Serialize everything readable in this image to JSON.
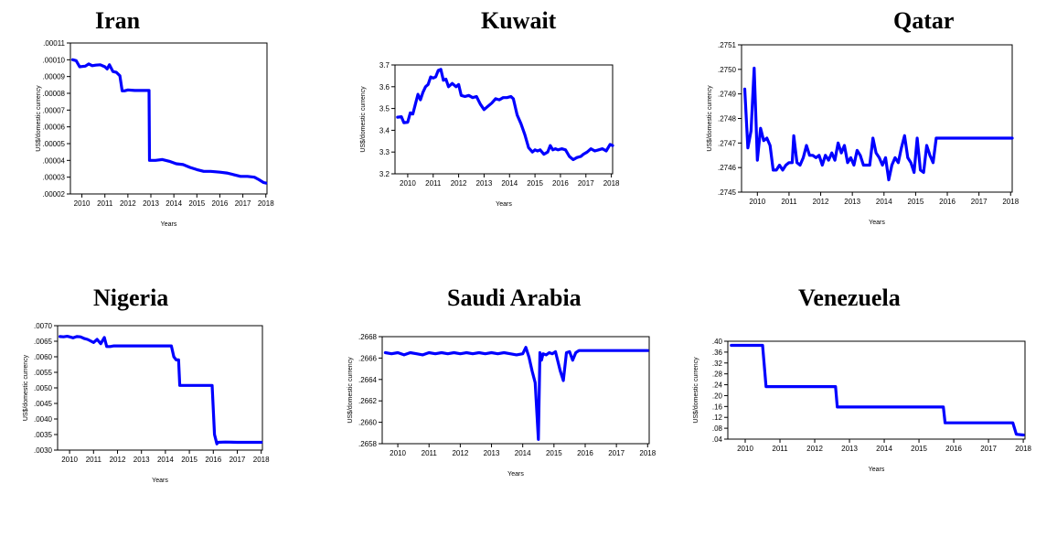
{
  "chart_data": [
    {
      "type": "line",
      "title": "Iran",
      "xlabel": "Years",
      "ylabel": "US$/domestic currency",
      "ylim": [
        2e-05,
        0.00011
      ],
      "xlim": [
        2009.5,
        2018.05
      ],
      "x_ticks": [
        2010,
        2011,
        2012,
        2013,
        2014,
        2015,
        2016,
        2017,
        2018
      ],
      "y_ticks": [
        ".00002",
        ".00003",
        ".00004",
        ".00005",
        ".00006",
        ".00007",
        ".00008",
        ".00009",
        ".00010",
        ".00011"
      ],
      "y_tick_values": [
        2e-05,
        3e-05,
        4e-05,
        5e-05,
        6e-05,
        7e-05,
        8e-05,
        9e-05,
        0.0001,
        0.00011
      ],
      "color": "#0000ff",
      "series": [
        {
          "x": [
            2009.6,
            2009.75,
            2009.9,
            2010.0,
            2010.15,
            2010.3,
            2010.45,
            2010.6,
            2010.8,
            2011.0,
            2011.1,
            2011.2,
            2011.35,
            2011.5,
            2011.65,
            2011.75,
            2011.85,
            2012.0,
            2012.3,
            2012.6,
            2012.92,
            2012.94,
            2013.2,
            2013.5,
            2013.8,
            2014.1,
            2014.4,
            2014.7,
            2015.0,
            2015.3,
            2015.6,
            2016.0,
            2016.3,
            2016.6,
            2016.9,
            2017.2,
            2017.5,
            2017.7,
            2017.9,
            2018.0
          ],
          "values": [
            0.0001,
            9.95e-05,
            9.58e-05,
            9.6e-05,
            9.62e-05,
            9.75e-05,
            9.65e-05,
            9.68e-05,
            9.7e-05,
            9.58e-05,
            9.45e-05,
            9.7e-05,
            9.3e-05,
            9.25e-05,
            9.05e-05,
            8.15e-05,
            8.15e-05,
            8.2e-05,
            8.17e-05,
            8.17e-05,
            8.17e-05,
            4e-05,
            4e-05,
            4.05e-05,
            3.95e-05,
            3.8e-05,
            3.75e-05,
            3.58e-05,
            3.45e-05,
            3.35e-05,
            3.35e-05,
            3.3e-05,
            3.25e-05,
            3.15e-05,
            3.05e-05,
            3.05e-05,
            3e-05,
            2.85e-05,
            2.68e-05,
            2.65e-05
          ]
        }
      ]
    },
    {
      "type": "line",
      "title": "Kuwait",
      "xlabel": "Years",
      "ylabel": "US$/domestic currency",
      "ylim": [
        3.2,
        3.7
      ],
      "xlim": [
        2009.5,
        2018.05
      ],
      "x_ticks": [
        2010,
        2011,
        2012,
        2013,
        2014,
        2015,
        2016,
        2017,
        2018
      ],
      "y_ticks": [
        "3.2",
        "3.3",
        "3.4",
        "3.5",
        "3.6",
        "3.7"
      ],
      "y_tick_values": [
        3.2,
        3.3,
        3.4,
        3.5,
        3.6,
        3.7
      ],
      "color": "#0000ff",
      "series": [
        {
          "x": [
            2009.6,
            2009.75,
            2009.85,
            2010.0,
            2010.1,
            2010.2,
            2010.3,
            2010.4,
            2010.5,
            2010.6,
            2010.7,
            2010.8,
            2010.9,
            2011.0,
            2011.1,
            2011.2,
            2011.3,
            2011.4,
            2011.5,
            2011.6,
            2011.75,
            2011.9,
            2012.0,
            2012.1,
            2012.25,
            2012.4,
            2012.55,
            2012.7,
            2012.85,
            2013.0,
            2013.15,
            2013.3,
            2013.45,
            2013.6,
            2013.75,
            2013.9,
            2014.05,
            2014.15,
            2014.3,
            2014.45,
            2014.6,
            2014.75,
            2014.9,
            2015.0,
            2015.1,
            2015.2,
            2015.35,
            2015.5,
            2015.6,
            2015.7,
            2015.8,
            2015.9,
            2016.05,
            2016.2,
            2016.35,
            2016.5,
            2016.65,
            2016.8,
            2016.9,
            2017.05,
            2017.2,
            2017.35,
            2017.5,
            2017.65,
            2017.8,
            2017.95,
            2018.05
          ],
          "values": [
            3.46,
            3.462,
            3.435,
            3.437,
            3.48,
            3.475,
            3.52,
            3.565,
            3.54,
            3.575,
            3.6,
            3.61,
            3.645,
            3.64,
            3.645,
            3.675,
            3.68,
            3.63,
            3.635,
            3.6,
            3.615,
            3.6,
            3.61,
            3.56,
            3.555,
            3.56,
            3.55,
            3.555,
            3.52,
            3.495,
            3.51,
            3.525,
            3.545,
            3.54,
            3.55,
            3.55,
            3.555,
            3.545,
            3.47,
            3.43,
            3.38,
            3.32,
            3.3,
            3.31,
            3.305,
            3.31,
            3.29,
            3.3,
            3.33,
            3.31,
            3.315,
            3.31,
            3.315,
            3.31,
            3.28,
            3.265,
            3.275,
            3.28,
            3.29,
            3.3,
            3.315,
            3.305,
            3.31,
            3.315,
            3.305,
            3.335,
            3.33
          ]
        }
      ]
    },
    {
      "type": "line",
      "title": "Qatar",
      "xlabel": "Years",
      "ylabel": "US$/domestic currency",
      "ylim": [
        0.2745,
        0.2751
      ],
      "xlim": [
        2009.5,
        2018.05
      ],
      "x_ticks": [
        2010,
        2011,
        2012,
        2013,
        2014,
        2015,
        2016,
        2017,
        2018
      ],
      "y_ticks": [
        ".2745",
        ".2746",
        ".2747",
        ".2748",
        ".2749",
        ".2750",
        ".2751"
      ],
      "y_tick_values": [
        0.2745,
        0.2746,
        0.2747,
        0.2748,
        0.2749,
        0.275,
        0.2751
      ],
      "color": "#0000ff",
      "series": [
        {
          "x": [
            2009.6,
            2009.7,
            2009.8,
            2009.9,
            2010.0,
            2010.1,
            2010.2,
            2010.3,
            2010.4,
            2010.5,
            2010.6,
            2010.7,
            2010.8,
            2010.9,
            2011.0,
            2011.1,
            2011.15,
            2011.25,
            2011.35,
            2011.45,
            2011.55,
            2011.65,
            2011.75,
            2011.85,
            2011.95,
            2012.05,
            2012.15,
            2012.25,
            2012.35,
            2012.45,
            2012.55,
            2012.65,
            2012.75,
            2012.85,
            2012.95,
            2013.05,
            2013.15,
            2013.25,
            2013.35,
            2013.45,
            2013.55,
            2013.65,
            2013.75,
            2013.85,
            2013.95,
            2014.05,
            2014.15,
            2014.25,
            2014.35,
            2014.45,
            2014.55,
            2014.65,
            2014.75,
            2014.85,
            2014.95,
            2015.05,
            2015.15,
            2015.25,
            2015.35,
            2015.45,
            2015.55,
            2015.65,
            2015.75,
            2015.85,
            2016.0,
            2016.5,
            2017.0,
            2017.5,
            2018.05
          ],
          "values": [
            0.27492,
            0.27468,
            0.27475,
            0.275005,
            0.27463,
            0.27476,
            0.27471,
            0.27472,
            0.27469,
            0.27459,
            0.27459,
            0.27461,
            0.27459,
            0.27461,
            0.27462,
            0.27462,
            0.27473,
            0.27462,
            0.27461,
            0.27464,
            0.27469,
            0.27465,
            0.27465,
            0.27464,
            0.27465,
            0.27461,
            0.27465,
            0.27463,
            0.27466,
            0.27463,
            0.2747,
            0.27466,
            0.27469,
            0.27462,
            0.27464,
            0.27461,
            0.27467,
            0.27465,
            0.27461,
            0.27461,
            0.27461,
            0.27472,
            0.27466,
            0.27464,
            0.27461,
            0.27464,
            0.27455,
            0.27461,
            0.27464,
            0.27462,
            0.27468,
            0.27473,
            0.27464,
            0.27462,
            0.27458,
            0.27472,
            0.27459,
            0.27458,
            0.27469,
            0.27465,
            0.27462,
            0.27472,
            0.27472,
            0.27472,
            0.27472,
            0.27472,
            0.27472,
            0.27472,
            0.27472
          ]
        }
      ]
    },
    {
      "type": "line",
      "title": "Nigeria",
      "xlabel": "Years",
      "ylabel": "US$/domestic currency",
      "ylim": [
        0.003,
        0.007
      ],
      "xlim": [
        2009.5,
        2018.05
      ],
      "x_ticks": [
        2010,
        2011,
        2012,
        2013,
        2014,
        2015,
        2016,
        2017,
        2018
      ],
      "y_ticks": [
        ".0030",
        ".0035",
        ".0040",
        ".0045",
        ".0050",
        ".0055",
        ".0060",
        ".0065",
        ".0070"
      ],
      "y_tick_values": [
        0.003,
        0.0035,
        0.004,
        0.0045,
        0.005,
        0.0055,
        0.006,
        0.0065,
        0.007
      ],
      "color": "#0000ff",
      "series": [
        {
          "x": [
            2009.6,
            2009.75,
            2009.9,
            2010.0,
            2010.15,
            2010.3,
            2010.45,
            2010.6,
            2010.75,
            2010.9,
            2011.0,
            2011.15,
            2011.3,
            2011.45,
            2011.55,
            2011.7,
            2011.85,
            2012.0,
            2012.5,
            2013.0,
            2013.5,
            2014.0,
            2014.25,
            2014.35,
            2014.45,
            2014.55,
            2014.6,
            2014.65,
            2015.0,
            2015.5,
            2015.95,
            2016.05,
            2016.15,
            2016.2,
            2016.5,
            2017.0,
            2017.5,
            2018.0
          ],
          "values": [
            0.00665,
            0.00664,
            0.00666,
            0.00664,
            0.00661,
            0.00665,
            0.00664,
            0.00659,
            0.00656,
            0.0065,
            0.00646,
            0.00656,
            0.00642,
            0.00662,
            0.00633,
            0.00633,
            0.00635,
            0.00635,
            0.00635,
            0.00635,
            0.00635,
            0.00635,
            0.00635,
            0.006,
            0.0059,
            0.0059,
            0.00508,
            0.00508,
            0.00508,
            0.00508,
            0.00508,
            0.0035,
            0.0032,
            0.00325,
            0.00326,
            0.00325,
            0.00325,
            0.00325
          ]
        }
      ]
    },
    {
      "type": "line",
      "title": "Saudi Arabia",
      "xlabel": "Years",
      "ylabel": "US$/domestic currency",
      "ylim": [
        0.2658,
        0.2668
      ],
      "xlim": [
        2009.5,
        2018.05
      ],
      "x_ticks": [
        2010,
        2011,
        2012,
        2013,
        2014,
        2015,
        2016,
        2017,
        2018
      ],
      "y_ticks": [
        ".2658",
        ".2660",
        ".2662",
        ".2664",
        ".2666",
        ".2668"
      ],
      "y_tick_values": [
        0.2658,
        0.266,
        0.2662,
        0.2664,
        0.2666,
        0.2668
      ],
      "color": "#0000ff",
      "series": [
        {
          "x": [
            2009.6,
            2009.8,
            2010.0,
            2010.2,
            2010.4,
            2010.6,
            2010.8,
            2011.0,
            2011.2,
            2011.4,
            2011.6,
            2011.8,
            2012.0,
            2012.2,
            2012.4,
            2012.6,
            2012.8,
            2013.0,
            2013.2,
            2013.4,
            2013.6,
            2013.8,
            2014.0,
            2014.1,
            2014.2,
            2014.3,
            2014.4,
            2014.5,
            2014.55,
            2014.6,
            2014.65,
            2014.75,
            2014.85,
            2014.95,
            2015.05,
            2015.2,
            2015.3,
            2015.4,
            2015.5,
            2015.6,
            2015.7,
            2015.8,
            2015.9,
            2016.0,
            2016.5,
            2017.0,
            2017.5,
            2018.0
          ],
          "values": [
            0.26665,
            0.26664,
            0.26665,
            0.26663,
            0.26665,
            0.26664,
            0.26663,
            0.26665,
            0.26664,
            0.26665,
            0.26664,
            0.26665,
            0.26664,
            0.26665,
            0.26664,
            0.26665,
            0.26664,
            0.26665,
            0.26664,
            0.26665,
            0.26664,
            0.26663,
            0.26664,
            0.2667,
            0.26661,
            0.26648,
            0.26637,
            0.26584,
            0.26665,
            0.26658,
            0.26664,
            0.26663,
            0.26665,
            0.26664,
            0.26666,
            0.26648,
            0.26639,
            0.26665,
            0.26666,
            0.26658,
            0.26665,
            0.26667,
            0.26667,
            0.26667,
            0.26667,
            0.26667,
            0.26667,
            0.26667
          ]
        }
      ]
    },
    {
      "type": "line",
      "title": "Venezuela",
      "xlabel": "Years",
      "ylabel": "US$/domestic currency",
      "ylim": [
        0.04,
        0.4
      ],
      "xlim": [
        2009.5,
        2018.05
      ],
      "x_ticks": [
        2010,
        2011,
        2012,
        2013,
        2014,
        2015,
        2016,
        2017,
        2018
      ],
      "y_ticks": [
        ".04",
        ".08",
        ".12",
        ".16",
        ".20",
        ".24",
        ".28",
        ".32",
        ".36",
        ".40"
      ],
      "y_tick_values": [
        0.04,
        0.08,
        0.12,
        0.16,
        0.2,
        0.24,
        0.28,
        0.32,
        0.36,
        0.4
      ],
      "color": "#0000ff",
      "series": [
        {
          "x": [
            2009.6,
            2010.5,
            2010.6,
            2011.5,
            2012.6,
            2012.65,
            2013.5,
            2015.7,
            2015.75,
            2016.5,
            2017.7,
            2017.8,
            2018.0
          ],
          "values": [
            0.385,
            0.385,
            0.233,
            0.233,
            0.233,
            0.158,
            0.158,
            0.158,
            0.1,
            0.1,
            0.1,
            0.058,
            0.055
          ]
        }
      ]
    }
  ]
}
